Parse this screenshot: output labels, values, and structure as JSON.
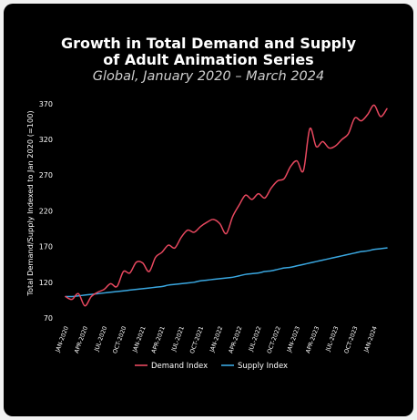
{
  "chart_data": {
    "type": "line",
    "title": "Growth in Total Demand and Supply of Adult Animation Series",
    "title_lines": [
      "Growth in Total Demand and Supply",
      "of Adult Animation Series"
    ],
    "subtitle": "Global, January 2020 – March 2024",
    "ylabel": "Total Demand/Supply Indexed to Jan 2020 (=100)",
    "xlabel": "",
    "ylim": [
      70,
      380
    ],
    "yticks": [
      70,
      120,
      170,
      220,
      270,
      320,
      370
    ],
    "x_tick_labels": [
      "JAN-2020",
      "APR-2020",
      "JUL-2020",
      "OCT-2020",
      "JAN-2021",
      "APR-2021",
      "JUL-2021",
      "OCT-2021",
      "JAN-2022",
      "APR-2022",
      "JUL-2022",
      "OCT-2022",
      "JAN-2023",
      "APR-2023",
      "JUL-2023",
      "OCT-2023",
      "JAN-2024"
    ],
    "grid": false,
    "legend_position": "bottom",
    "x": [
      "2020-01",
      "2020-02",
      "2020-03",
      "2020-04",
      "2020-05",
      "2020-06",
      "2020-07",
      "2020-08",
      "2020-09",
      "2020-10",
      "2020-11",
      "2020-12",
      "2021-01",
      "2021-02",
      "2021-03",
      "2021-04",
      "2021-05",
      "2021-06",
      "2021-07",
      "2021-08",
      "2021-09",
      "2021-10",
      "2021-11",
      "2021-12",
      "2022-01",
      "2022-02",
      "2022-03",
      "2022-04",
      "2022-05",
      "2022-06",
      "2022-07",
      "2022-08",
      "2022-09",
      "2022-10",
      "2022-11",
      "2022-12",
      "2023-01",
      "2023-02",
      "2023-03",
      "2023-04",
      "2023-05",
      "2023-06",
      "2023-07",
      "2023-08",
      "2023-09",
      "2023-10",
      "2023-11",
      "2023-12",
      "2024-01",
      "2024-02",
      "2024-03"
    ],
    "series": [
      {
        "name": "Demand Index",
        "color": "#e8485f",
        "values": [
          100,
          96,
          104,
          87,
          100,
          106,
          110,
          118,
          114,
          135,
          133,
          148,
          147,
          135,
          155,
          162,
          172,
          168,
          183,
          193,
          190,
          198,
          204,
          208,
          202,
          188,
          212,
          228,
          242,
          236,
          244,
          238,
          252,
          262,
          265,
          282,
          290,
          276,
          335,
          310,
          317,
          308,
          311,
          320,
          328,
          350,
          346,
          355,
          368,
          352,
          363
        ]
      },
      {
        "name": "Supply Index",
        "color": "#3aa7e0",
        "values": [
          100,
          100,
          101,
          102,
          103,
          104,
          105,
          106,
          107,
          108,
          109,
          110,
          111,
          112,
          113,
          114,
          116,
          117,
          118,
          119,
          120,
          122,
          123,
          124,
          125,
          126,
          127,
          129,
          131,
          132,
          133,
          135,
          136,
          138,
          140,
          141,
          143,
          145,
          147,
          149,
          151,
          153,
          155,
          157,
          159,
          161,
          163,
          164,
          166,
          167,
          168
        ]
      }
    ]
  }
}
